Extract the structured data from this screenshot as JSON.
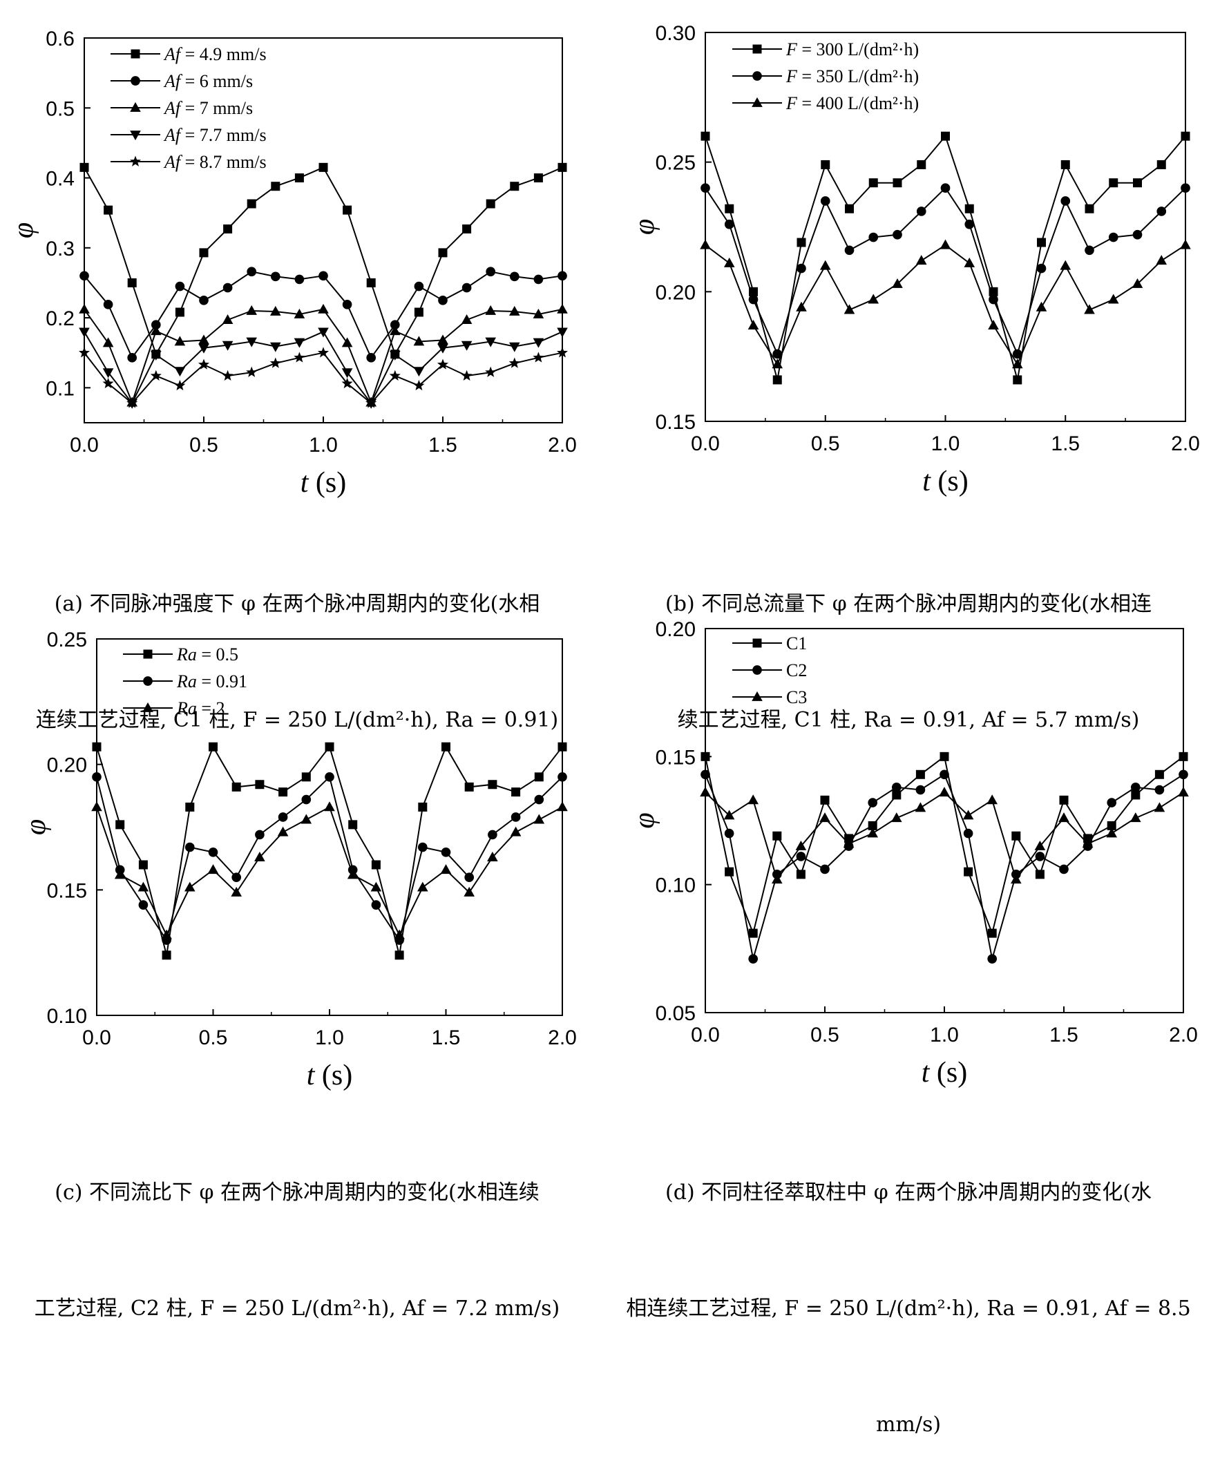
{
  "t_values": [
    0,
    0.1,
    0.2,
    0.3,
    0.4,
    0.5,
    0.6,
    0.7,
    0.8,
    0.9,
    1.0,
    1.1,
    1.2,
    1.3,
    1.4,
    1.5,
    1.6,
    1.7,
    1.8,
    1.9,
    2.0
  ],
  "chart_data": [
    {
      "type": "line",
      "panel": "a",
      "xlabel": "t (s)",
      "ylabel": "φ",
      "xlim": [
        0,
        2.0
      ],
      "ylim": [
        0.05,
        0.6
      ],
      "xticks": [
        "0.0",
        "0.5",
        "1.0",
        "1.5",
        "2.0"
      ],
      "yticks": [
        "0.1",
        "0.2",
        "0.3",
        "0.4",
        "0.5",
        "0.6"
      ],
      "ytick_values": [
        0.1,
        0.2,
        0.3,
        0.4,
        0.5,
        0.6
      ],
      "series": [
        {
          "name": "Af = 4.9 mm/s",
          "marker": "square",
          "values": [
            0.415,
            0.354,
            0.25,
            0.148,
            0.208,
            0.293,
            0.327,
            0.363,
            0.388,
            0.4,
            0.415,
            0.354,
            0.25,
            0.148,
            0.208,
            0.293,
            0.327,
            0.363,
            0.388,
            0.4,
            0.415
          ]
        },
        {
          "name": "Af = 6 mm/s",
          "marker": "circle",
          "values": [
            0.26,
            0.219,
            0.143,
            0.19,
            0.245,
            0.225,
            0.243,
            0.266,
            0.259,
            0.255,
            0.26,
            0.219,
            0.143,
            0.19,
            0.245,
            0.225,
            0.243,
            0.266,
            0.259,
            0.255,
            0.26
          ]
        },
        {
          "name": "Af = 7 mm/s",
          "marker": "triangle-up",
          "values": [
            0.212,
            0.164,
            0.079,
            0.181,
            0.166,
            0.168,
            0.197,
            0.21,
            0.209,
            0.205,
            0.212,
            0.164,
            0.079,
            0.181,
            0.166,
            0.168,
            0.197,
            0.21,
            0.209,
            0.205,
            0.212
          ]
        },
        {
          "name": "Af = 7.7 mm/s",
          "marker": "triangle-down",
          "values": [
            0.18,
            0.122,
            0.078,
            0.147,
            0.124,
            0.157,
            0.161,
            0.166,
            0.159,
            0.165,
            0.18,
            0.122,
            0.078,
            0.147,
            0.124,
            0.157,
            0.161,
            0.166,
            0.159,
            0.165,
            0.18
          ]
        },
        {
          "name": "Af = 8.7 mm/s",
          "marker": "star",
          "values": [
            0.15,
            0.106,
            0.078,
            0.117,
            0.103,
            0.133,
            0.117,
            0.122,
            0.135,
            0.143,
            0.15,
            0.106,
            0.078,
            0.117,
            0.103,
            0.133,
            0.117,
            0.122,
            0.135,
            0.143,
            0.15
          ]
        }
      ],
      "legend": {
        "position": "top-left",
        "labels": [
          {
            "var": "Af",
            "rest": " = 4.9 mm/s"
          },
          {
            "var": "Af",
            "rest": " = 6 mm/s"
          },
          {
            "var": "Af",
            "rest": " = 7 mm/s"
          },
          {
            "var": "Af",
            "rest": " = 7.7 mm/s"
          },
          {
            "var": "Af",
            "rest": " = 8.7 mm/s"
          }
        ]
      },
      "caption": "(a) 不同脉冲强度下 φ 在两个脉冲周期内的变化(水相连续工艺过程, C1 柱, F = 250 L/(dm²·h), Ra = 0.91)"
    },
    {
      "type": "line",
      "panel": "b",
      "xlabel": "t (s)",
      "ylabel": "φ",
      "xlim": [
        0,
        2.0
      ],
      "ylim": [
        0.15,
        0.3
      ],
      "xticks": [
        "0.0",
        "0.5",
        "1.0",
        "1.5",
        "2.0"
      ],
      "yticks": [
        "0.15",
        "0.20",
        "0.25",
        "0.30"
      ],
      "ytick_values": [
        0.15,
        0.2,
        0.25,
        0.3
      ],
      "series": [
        {
          "name": "F = 300 L/(dm²·h)",
          "marker": "square",
          "values": [
            0.26,
            0.232,
            0.2,
            0.166,
            0.219,
            0.249,
            0.232,
            0.242,
            0.242,
            0.249,
            0.26,
            0.232,
            0.2,
            0.166,
            0.219,
            0.249,
            0.232,
            0.242,
            0.242,
            0.249,
            0.26
          ]
        },
        {
          "name": "F = 350 L/(dm²·h)",
          "marker": "circle",
          "values": [
            0.24,
            0.226,
            0.197,
            0.176,
            0.209,
            0.235,
            0.216,
            0.221,
            0.222,
            0.231,
            0.24,
            0.226,
            0.197,
            0.176,
            0.209,
            0.235,
            0.216,
            0.221,
            0.222,
            0.231,
            0.24
          ]
        },
        {
          "name": "F = 400 L/(dm²·h)",
          "marker": "triangle-up",
          "values": [
            0.218,
            0.211,
            0.187,
            0.172,
            0.194,
            0.21,
            0.193,
            0.197,
            0.203,
            0.212,
            0.218,
            0.211,
            0.187,
            0.172,
            0.194,
            0.21,
            0.193,
            0.197,
            0.203,
            0.212,
            0.218
          ]
        }
      ],
      "legend": {
        "position": "top-left",
        "labels": [
          {
            "var": "F",
            "rest": " = 300 L/(dm²·h)"
          },
          {
            "var": "F",
            "rest": " = 350 L/(dm²·h)"
          },
          {
            "var": "F",
            "rest": " = 400 L/(dm²·h)"
          }
        ]
      },
      "caption": "(b) 不同总流量下 φ 在两个脉冲周期内的变化(水相连续工艺过程, C1 柱, Ra = 0.91, Af = 5.7 mm/s)"
    },
    {
      "type": "line",
      "panel": "c",
      "xlabel": "t (s)",
      "ylabel": "φ",
      "xlim": [
        0,
        2.0
      ],
      "ylim": [
        0.1,
        0.25
      ],
      "xticks": [
        "0.0",
        "0.5",
        "1.0",
        "1.5",
        "2.0"
      ],
      "yticks": [
        "0.10",
        "0.15",
        "0.20",
        "0.25"
      ],
      "ytick_values": [
        0.1,
        0.15,
        0.2,
        0.25
      ],
      "series": [
        {
          "name": "Ra = 0.5",
          "marker": "square",
          "values": [
            0.207,
            0.176,
            0.16,
            0.124,
            0.183,
            0.207,
            0.191,
            0.192,
            0.189,
            0.195,
            0.207,
            0.176,
            0.16,
            0.124,
            0.183,
            0.207,
            0.191,
            0.192,
            0.189,
            0.195,
            0.207
          ]
        },
        {
          "name": "Ra = 0.91",
          "marker": "circle",
          "values": [
            0.195,
            0.158,
            0.144,
            0.13,
            0.167,
            0.165,
            0.155,
            0.172,
            0.179,
            0.186,
            0.195,
            0.158,
            0.144,
            0.13,
            0.167,
            0.165,
            0.155,
            0.172,
            0.179,
            0.186,
            0.195
          ]
        },
        {
          "name": "Ra = 2",
          "marker": "triangle-up",
          "values": [
            0.183,
            0.156,
            0.151,
            0.132,
            0.151,
            0.158,
            0.149,
            0.163,
            0.173,
            0.178,
            0.183,
            0.156,
            0.151,
            0.132,
            0.151,
            0.158,
            0.149,
            0.163,
            0.173,
            0.178,
            0.183
          ]
        }
      ],
      "legend": {
        "position": "top-left",
        "labels": [
          {
            "var": "Ra",
            "rest": " = 0.5"
          },
          {
            "var": "Ra",
            "rest": " = 0.91"
          },
          {
            "var": "Ra",
            "rest": " = 2"
          }
        ]
      },
      "caption": "(c) 不同流比下 φ 在两个脉冲周期内的变化(水相连续工艺过程, C2 柱, F = 250 L/(dm²·h), Af = 7.2 mm/s)"
    },
    {
      "type": "line",
      "panel": "d",
      "xlabel": "t (s)",
      "ylabel": "φ",
      "xlim": [
        0,
        2.0
      ],
      "ylim": [
        0.05,
        0.2
      ],
      "xticks": [
        "0.0",
        "0.5",
        "1.0",
        "1.5",
        "2.0"
      ],
      "yticks": [
        "0.05",
        "0.10",
        "0.15",
        "0.20"
      ],
      "ytick_values": [
        0.05,
        0.1,
        0.15,
        0.2
      ],
      "series": [
        {
          "name": "C1",
          "marker": "square",
          "values": [
            0.15,
            0.105,
            0.081,
            0.119,
            0.104,
            0.133,
            0.118,
            0.123,
            0.135,
            0.143,
            0.15,
            0.105,
            0.081,
            0.119,
            0.104,
            0.133,
            0.118,
            0.123,
            0.135,
            0.143,
            0.15
          ]
        },
        {
          "name": "C2",
          "marker": "circle",
          "values": [
            0.143,
            0.12,
            0.071,
            0.104,
            0.111,
            0.106,
            0.115,
            0.132,
            0.138,
            0.137,
            0.143,
            0.12,
            0.071,
            0.104,
            0.111,
            0.106,
            0.115,
            0.132,
            0.138,
            0.137,
            0.143
          ]
        },
        {
          "name": "C3",
          "marker": "triangle-up",
          "values": [
            0.136,
            0.127,
            0.133,
            0.102,
            0.115,
            0.126,
            0.116,
            0.12,
            0.126,
            0.13,
            0.136,
            0.127,
            0.133,
            0.102,
            0.115,
            0.126,
            0.116,
            0.12,
            0.126,
            0.13,
            0.136
          ]
        }
      ],
      "legend": {
        "position": "top-left",
        "labels": [
          {
            "var": "",
            "rest": "C1"
          },
          {
            "var": "",
            "rest": "C2"
          },
          {
            "var": "",
            "rest": "C3"
          }
        ]
      },
      "caption": "(d) 不同柱径萃取柱中 φ 在两个脉冲周期内的变化(水相连续工艺过程, F = 250 L/(dm²·h), Ra = 0.91, Af = 8.5 mm/s)"
    }
  ],
  "axis": {
    "ylabel_symbol": "φ",
    "xlabel_var": "t",
    "xlabel_unit": " (s)"
  },
  "captions": {
    "a": {
      "line1": "(a) 不同脉冲强度下 φ 在两个脉冲周期内的变化(水相",
      "line2": "连续工艺过程, C1 柱, F = 250 L/(dm²·h), Ra = 0.91)"
    },
    "b": {
      "line1": "(b) 不同总流量下 φ 在两个脉冲周期内的变化(水相连",
      "line2": "续工艺过程, C1 柱, Ra = 0.91, Af = 5.7 mm/s)"
    },
    "c": {
      "line1": "(c) 不同流比下 φ 在两个脉冲周期内的变化(水相连续",
      "line2": "工艺过程, C2 柱, F = 250 L/(dm²·h), Af = 7.2 mm/s)"
    },
    "d": {
      "line1": "(d) 不同柱径萃取柱中 φ 在两个脉冲周期内的变化(水",
      "line2": "相连续工艺过程, F = 250 L/(dm²·h), Ra = 0.91, Af = 8.5",
      "line3": "mm/s)"
    }
  }
}
